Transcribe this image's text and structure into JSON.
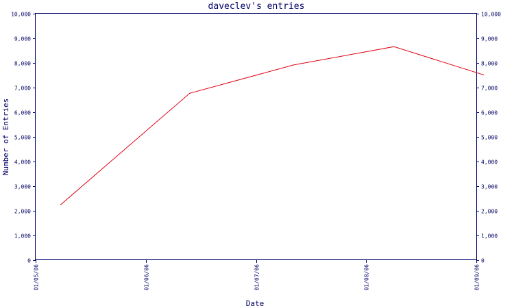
{
  "chart_data": {
    "type": "line",
    "title": "daveclev's entries",
    "xlabel": "Date",
    "ylabel": "Number of Entries",
    "x_ticks": [
      "01/05/06",
      "01/06/06",
      "01/07/06",
      "01/08/06",
      "01/09/06"
    ],
    "y_ticks": [
      "0",
      "1,000",
      "2,000",
      "3,000",
      "4,000",
      "5,000",
      "6,000",
      "7,000",
      "8,000",
      "9,000",
      "10,000"
    ],
    "ylim": [
      0,
      10000
    ],
    "xlim": [
      "2006-05-01",
      "2006-09-01"
    ],
    "grid": false,
    "series": [
      {
        "x": [
          "2006-05-08",
          "2006-06-13",
          "2006-07-12",
          "2006-08-09",
          "2006-09-03"
        ],
        "values": [
          2250,
          6770,
          7920,
          8660,
          7520
        ]
      }
    ]
  },
  "colors": {
    "axis": "#000066",
    "text": "#000066",
    "series": "#e0000f"
  }
}
